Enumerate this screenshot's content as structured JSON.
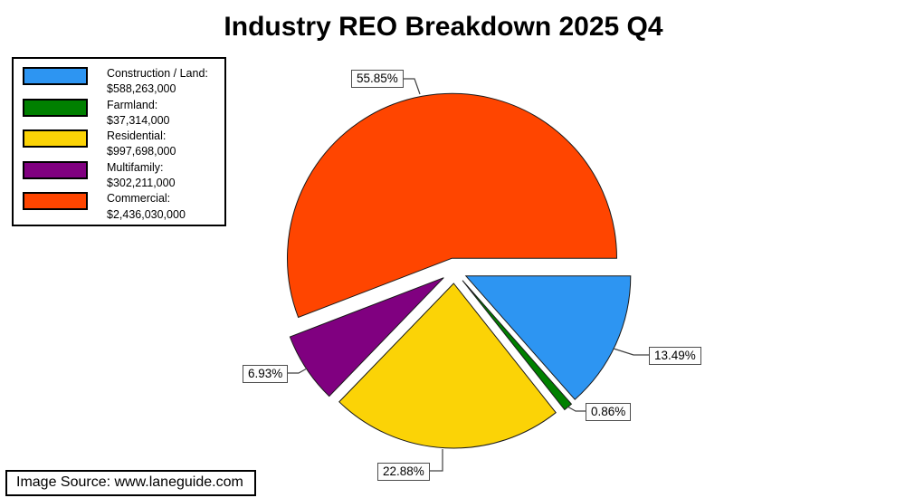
{
  "title": "Industry REO Breakdown 2025 Q4",
  "source": "Image Source: www.laneguide.com",
  "legend": {
    "items": [
      {
        "label": "Construction / Land:",
        "value": "$588,263,000"
      },
      {
        "label": "Farmland:",
        "value": "$37,314,000"
      },
      {
        "label": "Residential:",
        "value": "$997,698,000"
      },
      {
        "label": "Multifamily:",
        "value": "$302,211,000"
      },
      {
        "label": "Commercial:",
        "value": "$2,436,030,000"
      }
    ]
  },
  "chart_data": {
    "type": "pie",
    "title": "Industry REO Breakdown 2025 Q4",
    "exploded": true,
    "start_angle_deg": 0,
    "direction": "clockwise-from-east",
    "legend_position": "top-left",
    "slices": [
      {
        "id": "construction-land",
        "label": "Construction / Land",
        "value": 588263000,
        "value_text": "$588,263,000",
        "pct": 13.49,
        "pct_label": "13.49%",
        "color": "#2D95F2"
      },
      {
        "id": "farmland",
        "label": "Farmland",
        "value": 37314000,
        "value_text": "$37,314,000",
        "pct": 0.86,
        "pct_label": "0.86%",
        "color": "#008000"
      },
      {
        "id": "residential",
        "label": "Residential",
        "value": 997698000,
        "value_text": "$997,698,000",
        "pct": 22.88,
        "pct_label": "22.88%",
        "color": "#FBD306"
      },
      {
        "id": "multifamily",
        "label": "Multifamily",
        "value": 302211000,
        "value_text": "$302,211,000",
        "pct": 6.93,
        "pct_label": "6.93%",
        "color": "#800080"
      },
      {
        "id": "commercial",
        "label": "Commercial",
        "value": 2436030000,
        "value_text": "$2,436,030,000",
        "pct": 55.85,
        "pct_label": "55.85%",
        "color": "#FF4500"
      }
    ]
  }
}
